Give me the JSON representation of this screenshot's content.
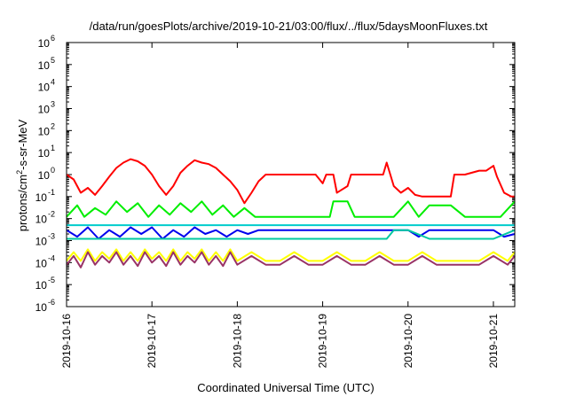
{
  "chart_data": {
    "type": "line",
    "title": "/data/run/goesPlots/archive/2019-10-21/03:00/flux/../flux/5daysMoonFluxes.txt",
    "xlabel": "Coordinated Universal Time (UTC)",
    "ylabel": "protons/cm2-s-sr-MeV",
    "ylabel_parts": {
      "pre": "protons/cm",
      "sup": "2",
      "post": "-s-sr-MeV"
    },
    "xlim": [
      "2019-10-16",
      "2019-10-21T06:00"
    ],
    "ylim": [
      1e-06,
      1000000.0
    ],
    "y_scale": "log",
    "grid": false,
    "legend": "none",
    "x_ticks": [
      {
        "value": "2019-10-16",
        "label": "2019-10-16"
      },
      {
        "value": "2019-10-17",
        "label": "2019-10-17"
      },
      {
        "value": "2019-10-18",
        "label": "2019-10-18"
      },
      {
        "value": "2019-10-19",
        "label": "2019-10-19"
      },
      {
        "value": "2019-10-20",
        "label": "2019-10-20"
      },
      {
        "value": "2019-10-21",
        "label": "2019-10-21"
      }
    ],
    "y_ticks": [
      {
        "value": 1e-06,
        "base": "10",
        "exp": "-6"
      },
      {
        "value": 1e-05,
        "base": "10",
        "exp": "-5"
      },
      {
        "value": 0.0001,
        "base": "10",
        "exp": "-4"
      },
      {
        "value": 0.001,
        "base": "10",
        "exp": "-3"
      },
      {
        "value": 0.01,
        "base": "10",
        "exp": "-2"
      },
      {
        "value": 0.1,
        "base": "10",
        "exp": "-1"
      },
      {
        "value": 1,
        "base": "10",
        "exp": "0"
      },
      {
        "value": 10,
        "base": "10",
        "exp": "1"
      },
      {
        "value": 100,
        "base": "10",
        "exp": "2"
      },
      {
        "value": 1000,
        "base": "10",
        "exp": "3"
      },
      {
        "value": 10000,
        "base": "10",
        "exp": "4"
      },
      {
        "value": 100000,
        "base": "10",
        "exp": "5"
      },
      {
        "value": 1000000,
        "base": "10",
        "exp": "6"
      }
    ],
    "series": [
      {
        "color": "#ff0000",
        "x": [
          "2019-10-16T00:00",
          "2019-10-16T02:00",
          "2019-10-16T04:00",
          "2019-10-16T06:00",
          "2019-10-16T08:00",
          "2019-10-16T10:00",
          "2019-10-16T12:00",
          "2019-10-16T14:00",
          "2019-10-16T16:00",
          "2019-10-16T18:00",
          "2019-10-16T20:00",
          "2019-10-16T22:00",
          "2019-10-17T00:00",
          "2019-10-17T02:00",
          "2019-10-17T04:00",
          "2019-10-17T06:00",
          "2019-10-17T08:00",
          "2019-10-17T10:00",
          "2019-10-17T12:00",
          "2019-10-17T14:00",
          "2019-10-17T16:00",
          "2019-10-17T18:00",
          "2019-10-17T20:00",
          "2019-10-17T22:00",
          "2019-10-18T00:00",
          "2019-10-18T02:00",
          "2019-10-18T04:00",
          "2019-10-18T06:00",
          "2019-10-18T08:00",
          "2019-10-18T10:00",
          "2019-10-18T14:00",
          "2019-10-18T18:00",
          "2019-10-18T22:00",
          "2019-10-19T00:00",
          "2019-10-19T01:00",
          "2019-10-19T03:00",
          "2019-10-19T04:00",
          "2019-10-19T07:00",
          "2019-10-19T08:00",
          "2019-10-19T11:00",
          "2019-10-19T14:00",
          "2019-10-19T17:00",
          "2019-10-19T18:00",
          "2019-10-19T20:00",
          "2019-10-19T22:00",
          "2019-10-20T00:00",
          "2019-10-20T02:00",
          "2019-10-20T04:00",
          "2019-10-20T08:00",
          "2019-10-20T12:00",
          "2019-10-20T13:00",
          "2019-10-20T16:00",
          "2019-10-20T20:00",
          "2019-10-20T22:00",
          "2019-10-21T00:00",
          "2019-10-21T01:00",
          "2019-10-21T03:00",
          "2019-10-21T05:00",
          "2019-10-21T06:00"
        ],
        "values": [
          1.0,
          0.6,
          0.15,
          0.25,
          0.12,
          0.3,
          0.8,
          2.0,
          3.5,
          5.0,
          4.0,
          2.5,
          1.0,
          0.3,
          0.12,
          0.3,
          1.2,
          2.5,
          4.5,
          3.5,
          3.0,
          2.0,
          1.0,
          0.5,
          0.2,
          0.05,
          0.15,
          0.5,
          1.0,
          1.0,
          1.0,
          1.0,
          1.0,
          0.4,
          1.0,
          1.0,
          0.15,
          0.3,
          1.0,
          1.0,
          1.0,
          1.0,
          3.5,
          0.3,
          0.15,
          0.25,
          0.12,
          0.1,
          0.1,
          0.1,
          1.0,
          1.0,
          1.5,
          1.5,
          2.5,
          0.8,
          0.15,
          0.1,
          0.1
        ]
      },
      {
        "color": "#00ee00",
        "x": [
          "2019-10-16T00:00",
          "2019-10-16T03:00",
          "2019-10-16T05:00",
          "2019-10-16T08:00",
          "2019-10-16T11:00",
          "2019-10-16T14:00",
          "2019-10-16T17:00",
          "2019-10-16T20:00",
          "2019-10-16T23:00",
          "2019-10-17T02:00",
          "2019-10-17T05:00",
          "2019-10-17T08:00",
          "2019-10-17T11:00",
          "2019-10-17T14:00",
          "2019-10-17T17:00",
          "2019-10-17T20:00",
          "2019-10-17T23:00",
          "2019-10-18T02:00",
          "2019-10-18T05:00",
          "2019-10-18T08:00",
          "2019-10-18T14:00",
          "2019-10-18T20:00",
          "2019-10-19T00:00",
          "2019-10-19T02:00",
          "2019-10-19T03:00",
          "2019-10-19T07:00",
          "2019-10-19T09:00",
          "2019-10-19T12:00",
          "2019-10-19T16:00",
          "2019-10-19T20:00",
          "2019-10-20T00:00",
          "2019-10-20T03:00",
          "2019-10-20T06:00",
          "2019-10-20T12:00",
          "2019-10-20T16:00",
          "2019-10-20T22:00",
          "2019-10-21T02:00",
          "2019-10-21T06:00"
        ],
        "values": [
          0.012,
          0.04,
          0.012,
          0.03,
          0.015,
          0.06,
          0.02,
          0.05,
          0.012,
          0.04,
          0.015,
          0.05,
          0.02,
          0.06,
          0.015,
          0.04,
          0.012,
          0.03,
          0.012,
          0.012,
          0.012,
          0.012,
          0.012,
          0.012,
          0.06,
          0.06,
          0.012,
          0.012,
          0.012,
          0.012,
          0.06,
          0.012,
          0.04,
          0.04,
          0.012,
          0.012,
          0.012,
          0.06
        ]
      },
      {
        "color": "#00cccc",
        "x": [
          "2019-10-16T00:00",
          "2019-10-16T06:00",
          "2019-10-16T12:00",
          "2019-10-16T18:00",
          "2019-10-17T00:00",
          "2019-10-17T06:00",
          "2019-10-17T12:00",
          "2019-10-17T18:00",
          "2019-10-18T00:00",
          "2019-10-18T06:00",
          "2019-10-18T12:00",
          "2019-10-18T18:00",
          "2019-10-19T00:00",
          "2019-10-19T06:00",
          "2019-10-19T12:00",
          "2019-10-19T18:00",
          "2019-10-20T00:00",
          "2019-10-20T06:00",
          "2019-10-20T12:00",
          "2019-10-20T18:00",
          "2019-10-21T00:00",
          "2019-10-21T06:00"
        ],
        "values": [
          0.005,
          0.005,
          0.005,
          0.005,
          0.005,
          0.005,
          0.005,
          0.005,
          0.005,
          0.005,
          0.005,
          0.005,
          0.005,
          0.005,
          0.005,
          0.005,
          0.005,
          0.005,
          0.005,
          0.005,
          0.005,
          0.005
        ]
      },
      {
        "color": "#0000ee",
        "x": [
          "2019-10-16T00:00",
          "2019-10-16T03:00",
          "2019-10-16T06:00",
          "2019-10-16T09:00",
          "2019-10-16T12:00",
          "2019-10-16T15:00",
          "2019-10-16T18:00",
          "2019-10-16T21:00",
          "2019-10-17T00:00",
          "2019-10-17T03:00",
          "2019-10-17T06:00",
          "2019-10-17T09:00",
          "2019-10-17T12:00",
          "2019-10-17T15:00",
          "2019-10-17T18:00",
          "2019-10-17T21:00",
          "2019-10-18T00:00",
          "2019-10-18T03:00",
          "2019-10-18T06:00",
          "2019-10-18T12:00",
          "2019-10-18T18:00",
          "2019-10-19T00:00",
          "2019-10-19T04:00",
          "2019-10-19T08:00",
          "2019-10-19T12:00",
          "2019-10-19T18:00",
          "2019-10-20T00:00",
          "2019-10-20T03:00",
          "2019-10-20T06:00",
          "2019-10-20T12:00",
          "2019-10-20T18:00",
          "2019-10-21T00:00",
          "2019-10-21T03:00",
          "2019-10-21T06:00"
        ],
        "values": [
          0.003,
          0.0015,
          0.004,
          0.0012,
          0.003,
          0.0015,
          0.004,
          0.002,
          0.004,
          0.0012,
          0.003,
          0.0015,
          0.004,
          0.002,
          0.003,
          0.0015,
          0.003,
          0.002,
          0.003,
          0.003,
          0.003,
          0.003,
          0.003,
          0.003,
          0.003,
          0.003,
          0.003,
          0.0015,
          0.003,
          0.003,
          0.003,
          0.003,
          0.0015,
          0.002
        ]
      },
      {
        "color": "#00c8a0",
        "x": [
          "2019-10-16T00:00",
          "2019-10-16T06:00",
          "2019-10-16T12:00",
          "2019-10-16T18:00",
          "2019-10-17T00:00",
          "2019-10-17T06:00",
          "2019-10-17T12:00",
          "2019-10-17T18:00",
          "2019-10-18T00:00",
          "2019-10-18T06:00",
          "2019-10-18T12:00",
          "2019-10-18T18:00",
          "2019-10-19T00:00",
          "2019-10-19T06:00",
          "2019-10-19T12:00",
          "2019-10-19T18:00",
          "2019-10-19T20:00",
          "2019-10-20T00:00",
          "2019-10-20T06:00",
          "2019-10-20T12:00",
          "2019-10-20T18:00",
          "2019-10-21T00:00",
          "2019-10-21T06:00"
        ],
        "values": [
          0.0012,
          0.0012,
          0.0012,
          0.0012,
          0.0012,
          0.0012,
          0.0012,
          0.0012,
          0.0012,
          0.0012,
          0.0012,
          0.0012,
          0.0012,
          0.0012,
          0.0012,
          0.0012,
          0.003,
          0.003,
          0.0012,
          0.0012,
          0.0012,
          0.0012,
          0.003
        ]
      },
      {
        "color": "#ffff00",
        "x": [
          "2019-10-16T00:00",
          "2019-10-16T02:00",
          "2019-10-16T04:00",
          "2019-10-16T06:00",
          "2019-10-16T08:00",
          "2019-10-16T10:00",
          "2019-10-16T12:00",
          "2019-10-16T14:00",
          "2019-10-16T16:00",
          "2019-10-16T18:00",
          "2019-10-16T20:00",
          "2019-10-16T22:00",
          "2019-10-17T00:00",
          "2019-10-17T02:00",
          "2019-10-17T04:00",
          "2019-10-17T06:00",
          "2019-10-17T08:00",
          "2019-10-17T10:00",
          "2019-10-17T12:00",
          "2019-10-17T14:00",
          "2019-10-17T16:00",
          "2019-10-17T18:00",
          "2019-10-17T20:00",
          "2019-10-17T22:00",
          "2019-10-18T00:00",
          "2019-10-18T04:00",
          "2019-10-18T08:00",
          "2019-10-18T12:00",
          "2019-10-18T16:00",
          "2019-10-18T20:00",
          "2019-10-19T00:00",
          "2019-10-19T04:00",
          "2019-10-19T08:00",
          "2019-10-19T12:00",
          "2019-10-19T16:00",
          "2019-10-19T20:00",
          "2019-10-20T00:00",
          "2019-10-20T04:00",
          "2019-10-20T08:00",
          "2019-10-20T12:00",
          "2019-10-20T16:00",
          "2019-10-20T20:00",
          "2019-10-21T00:00",
          "2019-10-21T04:00",
          "2019-10-21T06:00"
        ],
        "values": [
          0.00012,
          0.0003,
          0.00012,
          0.0004,
          0.00012,
          0.0003,
          0.00015,
          0.0004,
          0.00012,
          0.0003,
          0.00012,
          0.0004,
          0.00015,
          0.0003,
          0.00012,
          0.0004,
          0.00012,
          0.0003,
          0.00015,
          0.0004,
          0.00012,
          0.0003,
          0.00012,
          0.0004,
          0.00012,
          0.0003,
          0.00012,
          0.00012,
          0.0003,
          0.00012,
          0.00012,
          0.0003,
          0.00012,
          0.00012,
          0.0003,
          0.00012,
          0.00012,
          0.0003,
          0.00012,
          0.00012,
          0.00012,
          0.00012,
          0.0003,
          0.00012,
          0.0003
        ]
      },
      {
        "color": "#993366",
        "x": [
          "2019-10-16T00:00",
          "2019-10-16T02:00",
          "2019-10-16T04:00",
          "2019-10-16T06:00",
          "2019-10-16T08:00",
          "2019-10-16T10:00",
          "2019-10-16T12:00",
          "2019-10-16T14:00",
          "2019-10-16T16:00",
          "2019-10-16T18:00",
          "2019-10-16T20:00",
          "2019-10-16T22:00",
          "2019-10-17T00:00",
          "2019-10-17T02:00",
          "2019-10-17T04:00",
          "2019-10-17T06:00",
          "2019-10-17T08:00",
          "2019-10-17T10:00",
          "2019-10-17T12:00",
          "2019-10-17T14:00",
          "2019-10-17T16:00",
          "2019-10-17T18:00",
          "2019-10-17T20:00",
          "2019-10-17T22:00",
          "2019-10-18T00:00",
          "2019-10-18T04:00",
          "2019-10-18T08:00",
          "2019-10-18T12:00",
          "2019-10-18T16:00",
          "2019-10-18T20:00",
          "2019-10-19T00:00",
          "2019-10-19T04:00",
          "2019-10-19T08:00",
          "2019-10-19T12:00",
          "2019-10-19T16:00",
          "2019-10-19T20:00",
          "2019-10-20T00:00",
          "2019-10-20T04:00",
          "2019-10-20T08:00",
          "2019-10-20T12:00",
          "2019-10-20T16:00",
          "2019-10-20T20:00",
          "2019-10-21T00:00",
          "2019-10-21T04:00",
          "2019-10-21T06:00"
        ],
        "values": [
          8e-05,
          0.0002,
          6e-05,
          0.0003,
          8e-05,
          0.0002,
          0.0001,
          0.0003,
          8e-05,
          0.0002,
          7e-05,
          0.0003,
          0.0001,
          0.0002,
          7e-05,
          0.0003,
          8e-05,
          0.0002,
          0.0001,
          0.0003,
          8e-05,
          0.0002,
          7e-05,
          0.0003,
          8e-05,
          0.0002,
          8e-05,
          8e-05,
          0.0002,
          8e-05,
          8e-05,
          0.0002,
          8e-05,
          8e-05,
          0.0002,
          8e-05,
          8e-05,
          0.0002,
          8e-05,
          8e-05,
          8e-05,
          8e-05,
          0.0002,
          8e-05,
          0.0002
        ]
      }
    ]
  }
}
